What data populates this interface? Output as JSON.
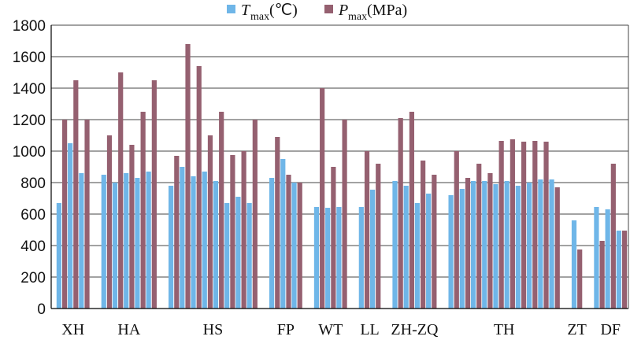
{
  "chart_data": {
    "type": "bar",
    "title": "",
    "xlabel": "",
    "ylabel": "",
    "ylim": [
      0,
      1800
    ],
    "yticks": [
      0,
      200,
      400,
      600,
      800,
      1000,
      1200,
      1400,
      1600,
      1800
    ],
    "grid": "horizontal",
    "legend_position": "top",
    "colors": {
      "T": "#6fb6e8",
      "P": "#956070"
    },
    "series": [
      {
        "key": "T",
        "name": "T",
        "subscript": "max",
        "unit": "(℃)"
      },
      {
        "key": "P",
        "name": "P",
        "subscript": "max",
        "unit": "(MPa)"
      }
    ],
    "groups": [
      {
        "label": "XH",
        "pairs": [
          [
            670,
            1200
          ],
          [
            1050,
            1450
          ],
          [
            860,
            1200
          ]
        ]
      },
      {
        "label": "HA",
        "pairs": [
          [
            850,
            1100
          ],
          [
            800,
            1500
          ],
          [
            860,
            1040
          ],
          [
            830,
            1250
          ],
          [
            870,
            1450
          ]
        ]
      },
      {
        "label": "HS",
        "pairs": [
          [
            780,
            970
          ],
          [
            900,
            1680
          ],
          [
            840,
            1540
          ],
          [
            870,
            1100
          ],
          [
            810,
            1250
          ],
          [
            670,
            975
          ],
          [
            710,
            1000
          ],
          [
            670,
            1200
          ]
        ]
      },
      {
        "label": "FP",
        "pairs": [
          [
            830,
            1090
          ],
          [
            950,
            850
          ],
          [
            800,
            800
          ]
        ]
      },
      {
        "label": "WT",
        "pairs": [
          [
            645,
            1400
          ],
          [
            640,
            900
          ],
          [
            645,
            1200
          ]
        ]
      },
      {
        "label": "LL",
        "pairs": [
          [
            645,
            1000
          ],
          [
            755,
            920
          ]
        ]
      },
      {
        "label": "ZH-ZQ",
        "pairs": [
          [
            810,
            1210
          ],
          [
            780,
            1250
          ],
          [
            670,
            940
          ],
          [
            730,
            850
          ]
        ]
      },
      {
        "label": "TH",
        "pairs": [
          [
            720,
            1000
          ],
          [
            760,
            830
          ],
          [
            810,
            920
          ],
          [
            810,
            860
          ],
          [
            790,
            1065
          ],
          [
            810,
            1075
          ],
          [
            780,
            1060
          ],
          [
            800,
            1065
          ],
          [
            820,
            1060
          ],
          [
            820,
            770
          ]
        ]
      },
      {
        "label": "ZT",
        "pairs": [
          [
            560,
            375
          ]
        ]
      },
      {
        "label": "DF",
        "pairs": [
          [
            645,
            430
          ],
          [
            630,
            920
          ],
          [
            495,
            495
          ]
        ]
      }
    ]
  }
}
